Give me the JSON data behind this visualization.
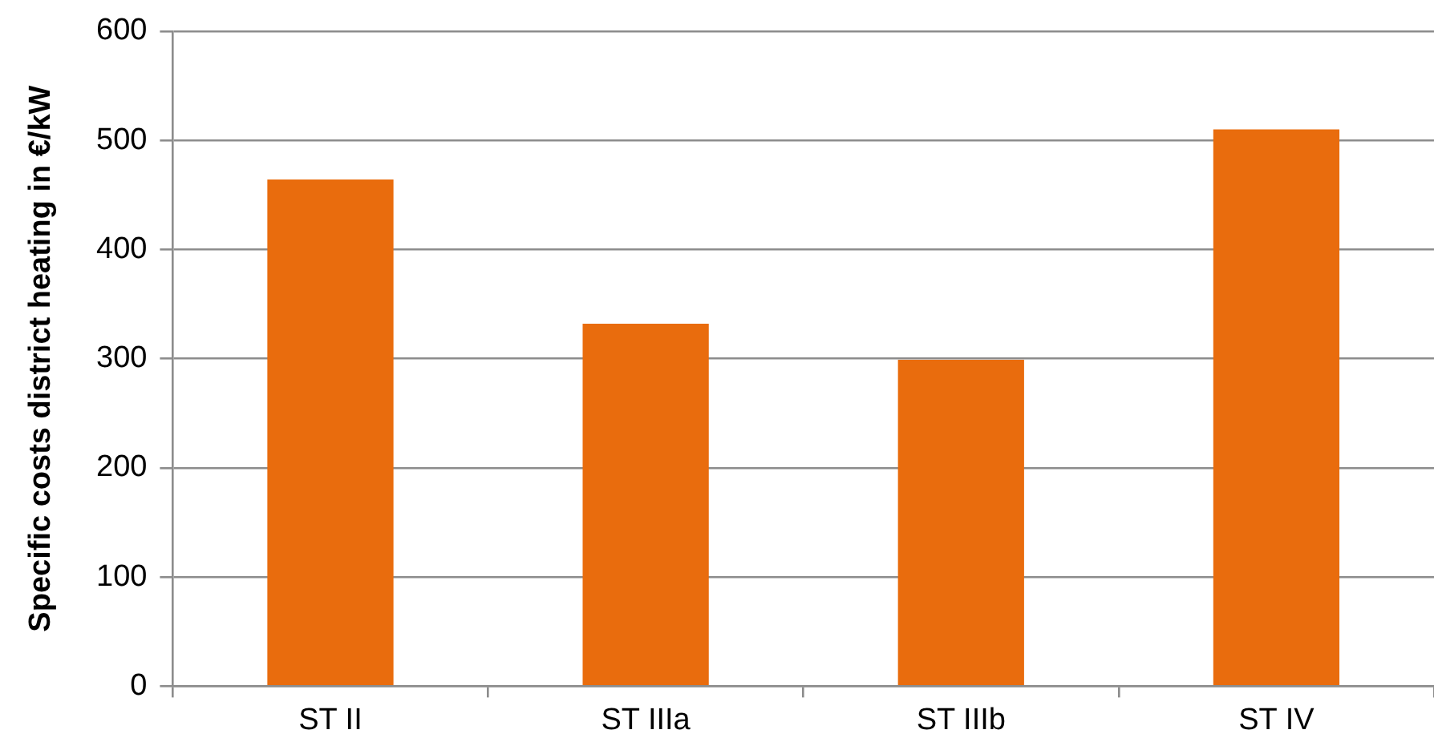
{
  "chart_data": {
    "type": "bar",
    "ylabel": "Specific costs district heating in €/kW",
    "categories": [
      "ST II",
      "ST IIIa",
      "ST IIIb",
      "ST IV"
    ],
    "values": [
      464,
      332,
      299,
      510
    ],
    "color": "#e96c0d",
    "ylim": [
      0,
      600
    ],
    "yticks": [
      0,
      100,
      200,
      300,
      400,
      500,
      600
    ],
    "grid": "y"
  }
}
